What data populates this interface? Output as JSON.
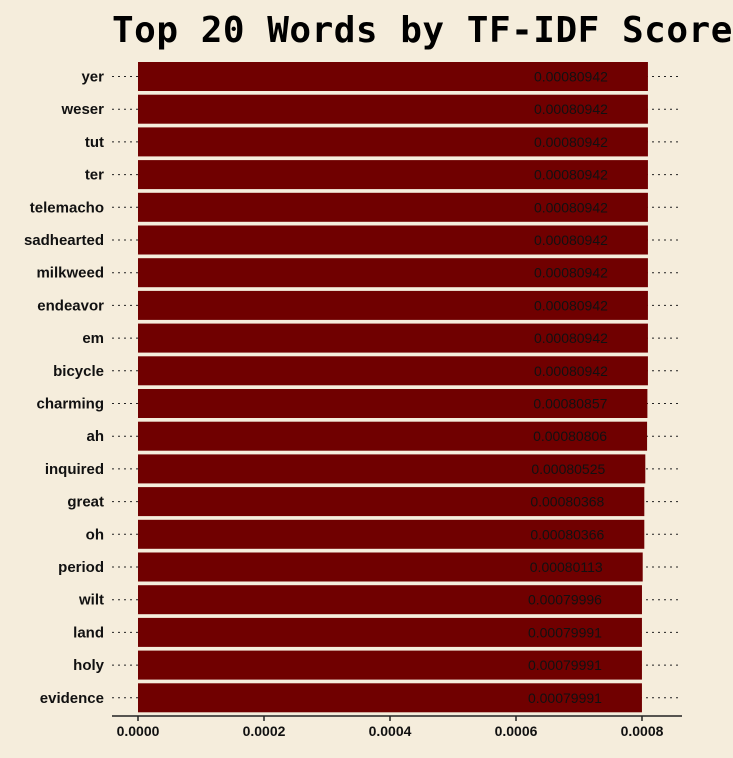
{
  "chart_data": {
    "type": "bar",
    "orientation": "horizontal",
    "title": "Top 20 Words by TF-IDF Score",
    "xlabel": "",
    "ylabel": "",
    "xlim": [
      0,
      0.00082
    ],
    "grid": true,
    "bar_color": "#700000",
    "background": "#f5eddc",
    "categories": [
      "yer",
      "weser",
      "tut",
      "ter",
      "telemacho",
      "sadhearted",
      "milkweed",
      "endeavor",
      "em",
      "bicycle",
      "charming",
      "ah",
      "inquired",
      "great",
      "oh",
      "period",
      "wilt",
      "land",
      "holy",
      "evidence"
    ],
    "values": [
      0.00080942,
      0.00080942,
      0.00080942,
      0.00080942,
      0.00080942,
      0.00080942,
      0.00080942,
      0.00080942,
      0.00080942,
      0.00080942,
      0.00080857,
      0.00080806,
      0.00080525,
      0.00080368,
      0.00080366,
      0.00080113,
      0.00079996,
      0.00079991,
      0.00079991,
      0.00079991
    ],
    "value_labels": [
      "0.00080942",
      "0.00080942",
      "0.00080942",
      "0.00080942",
      "0.00080942",
      "0.00080942",
      "0.00080942",
      "0.00080942",
      "0.00080942",
      "0.00080942",
      "0.00080857",
      "0.00080806",
      "0.00080525",
      "0.00080368",
      "0.00080366",
      "0.00080113",
      "0.00079996",
      "0.00079991",
      "0.00079991",
      "0.00079991"
    ],
    "x_ticks": [
      0,
      0.0002,
      0.0004,
      0.0006,
      0.0008
    ],
    "x_tick_labels": [
      "0.0000",
      "0.0002",
      "0.0004",
      "0.0006",
      "0.0008"
    ]
  }
}
